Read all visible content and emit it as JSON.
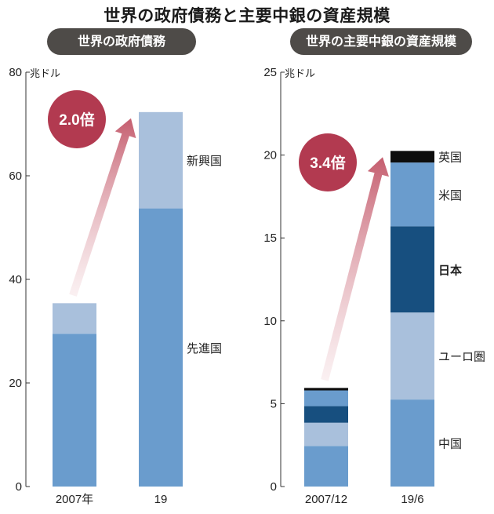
{
  "title": "世界の政府債務と主要中銀の資産規模",
  "colors": {
    "light": "#a9c0dc",
    "mid": "#6a9ccd",
    "dark": "#174f7f",
    "black": "#0d0d0d",
    "badge": "#b23a50",
    "panel_bg": "#4e4b48"
  },
  "chart_data": [
    {
      "type": "bar",
      "stacked": true,
      "title": "世界の政府債務",
      "unit": "兆ドル",
      "ylim": [
        0,
        80
      ],
      "yticks": [
        0,
        20,
        40,
        60,
        80
      ],
      "categories": [
        "2007年",
        "19"
      ],
      "series": [
        {
          "name": "先進国",
          "values": [
            29.5,
            53.7
          ],
          "color": "mid"
        },
        {
          "name": "新興国",
          "values": [
            5.9,
            18.6
          ],
          "color": "light"
        }
      ],
      "annotation": {
        "text": "2.0倍",
        "from": 0,
        "to": 1
      }
    },
    {
      "type": "bar",
      "stacked": true,
      "title": "世界の主要中銀の資産規模",
      "unit": "兆ドル",
      "ylim": [
        0,
        25
      ],
      "yticks": [
        0,
        5,
        10,
        15,
        20,
        25
      ],
      "categories": [
        "2007/12",
        "19/6"
      ],
      "series": [
        {
          "name": "中国",
          "values": [
            2.45,
            5.25
          ],
          "color": "mid"
        },
        {
          "name": "ユーロ圏",
          "values": [
            1.4,
            5.25
          ],
          "color": "light"
        },
        {
          "name": "日本",
          "values": [
            1.0,
            5.2
          ],
          "color": "dark",
          "bold": true
        },
        {
          "name": "米国",
          "values": [
            0.95,
            3.85
          ],
          "color": "mid"
        },
        {
          "name": "英国",
          "values": [
            0.15,
            0.7
          ],
          "color": "black"
        }
      ],
      "annotation": {
        "text": "3.4倍",
        "from": 0,
        "to": 1
      }
    }
  ]
}
